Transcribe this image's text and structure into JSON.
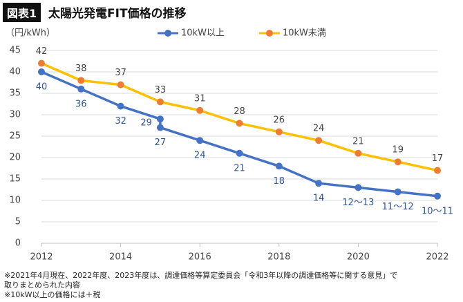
{
  "badge": "図表1",
  "chart_data": {
    "type": "line",
    "title": "太陽光発電FIT価格の推移",
    "y_label": "（円/kWh）",
    "xlim": [
      2012,
      2022
    ],
    "xticks": [
      2012,
      2014,
      2016,
      2018,
      2020,
      2022
    ],
    "ylim": [
      0,
      45
    ],
    "yticks": [
      0,
      5,
      10,
      15,
      20,
      25,
      30,
      35,
      40,
      45
    ],
    "grid": true,
    "legend": "top",
    "series": [
      {
        "name": "10kW以上",
        "color": "#4472c4",
        "marker_color": "#4472c4",
        "label_position": "below",
        "x": [
          2012,
          2013,
          2014,
          2015,
          2015,
          2016,
          2017,
          2018,
          2019,
          2020,
          2021,
          2022
        ],
        "values": [
          40,
          36,
          32,
          29,
          27,
          24,
          21,
          18,
          14,
          13,
          12,
          11
        ],
        "value_labels": [
          "40",
          "36",
          "32",
          "29",
          "27",
          "24",
          "21",
          "18",
          "14",
          "12〜13",
          "11〜12",
          "10〜11"
        ]
      },
      {
        "name": "10kW未満",
        "color": "#ffc000",
        "marker_color": "#ed7d31",
        "label_position": "above",
        "x": [
          2012,
          2013,
          2014,
          2015,
          2016,
          2017,
          2018,
          2019,
          2020,
          2021,
          2022
        ],
        "values": [
          42,
          38,
          37,
          33,
          31,
          28,
          26,
          24,
          21,
          19,
          17
        ]
      }
    ]
  },
  "notes": [
    "※2021年4月現在、2022年度、2023年度は、調達価格等算定委員会「令和3年以降の調達価格等に関する意見」で",
    "取りまとめられた内容",
    "※10kW以上の価格には＋税"
  ]
}
